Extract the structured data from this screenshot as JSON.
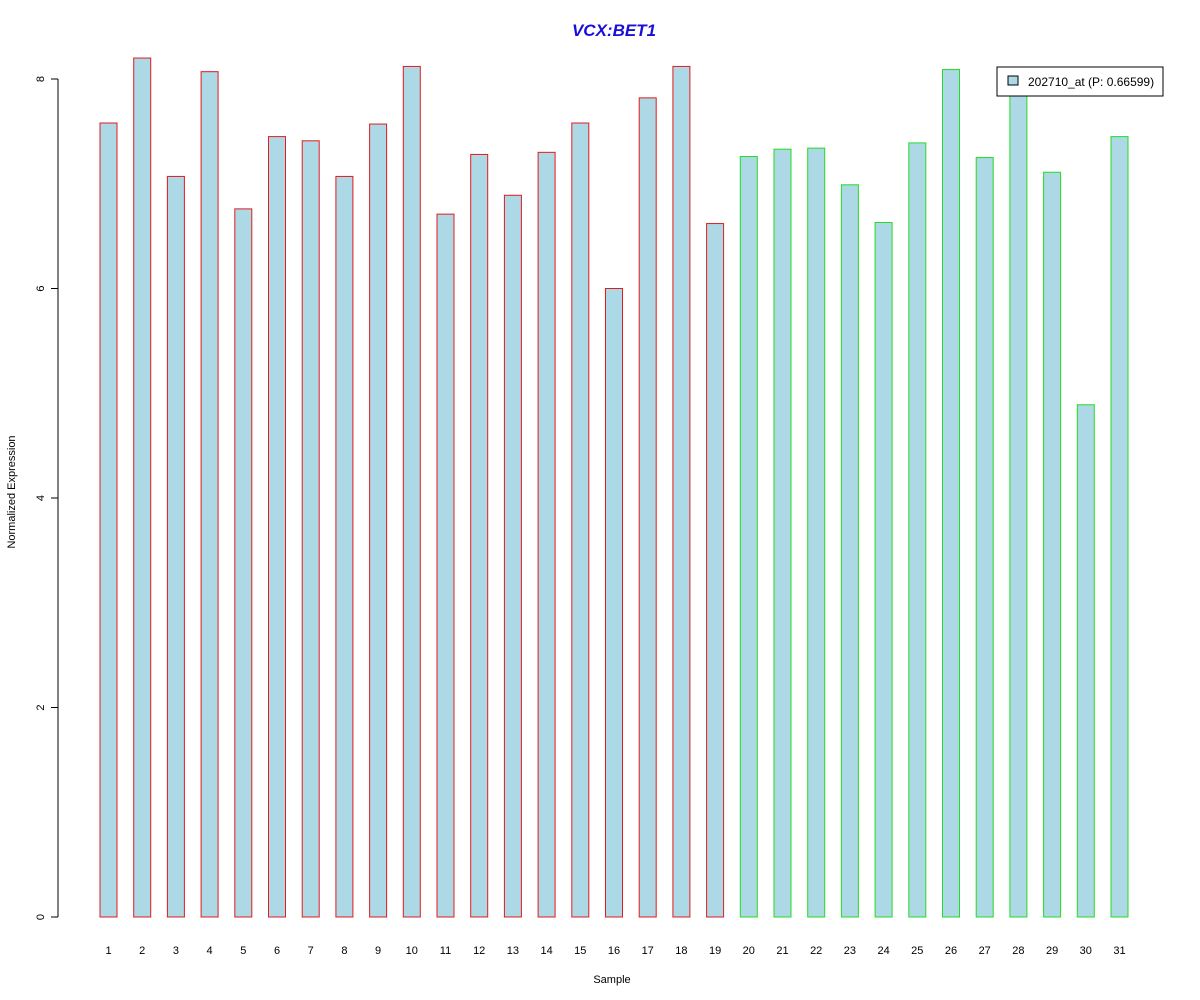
{
  "colors": {
    "title": "#1a0fd6",
    "bar_fill": "#add8e6",
    "group1_border": "#e41a1c",
    "group2_border": "#22dd22"
  },
  "chart_data": {
    "type": "bar",
    "title": "VCX:BET1",
    "xlabel": "Sample",
    "ylabel": "Normalized Expression",
    "ylim": [
      0,
      8.2
    ],
    "yticks": [
      0,
      2,
      4,
      6,
      8
    ],
    "grid": false,
    "legend_position": "top-right",
    "categories": [
      "1",
      "2",
      "3",
      "4",
      "5",
      "6",
      "7",
      "8",
      "9",
      "10",
      "11",
      "12",
      "13",
      "14",
      "15",
      "16",
      "17",
      "18",
      "19",
      "20",
      "21",
      "22",
      "23",
      "24",
      "25",
      "26",
      "27",
      "28",
      "29",
      "30",
      "31"
    ],
    "series": [
      {
        "name": "202710_at (P: 0.66599)",
        "values": [
          7.58,
          8.2,
          7.07,
          8.07,
          6.76,
          7.45,
          7.41,
          7.07,
          7.57,
          8.12,
          6.71,
          7.28,
          6.89,
          7.3,
          7.58,
          6.0,
          7.82,
          8.12,
          6.62,
          7.26,
          7.33,
          7.34,
          6.99,
          6.63,
          7.39,
          8.09,
          7.25,
          7.89,
          7.11,
          4.89,
          7.45
        ]
      }
    ],
    "group": [
      1,
      1,
      1,
      1,
      1,
      1,
      1,
      1,
      1,
      1,
      1,
      1,
      1,
      1,
      1,
      1,
      1,
      1,
      1,
      2,
      2,
      2,
      2,
      2,
      2,
      2,
      2,
      2,
      2,
      2,
      2
    ]
  }
}
